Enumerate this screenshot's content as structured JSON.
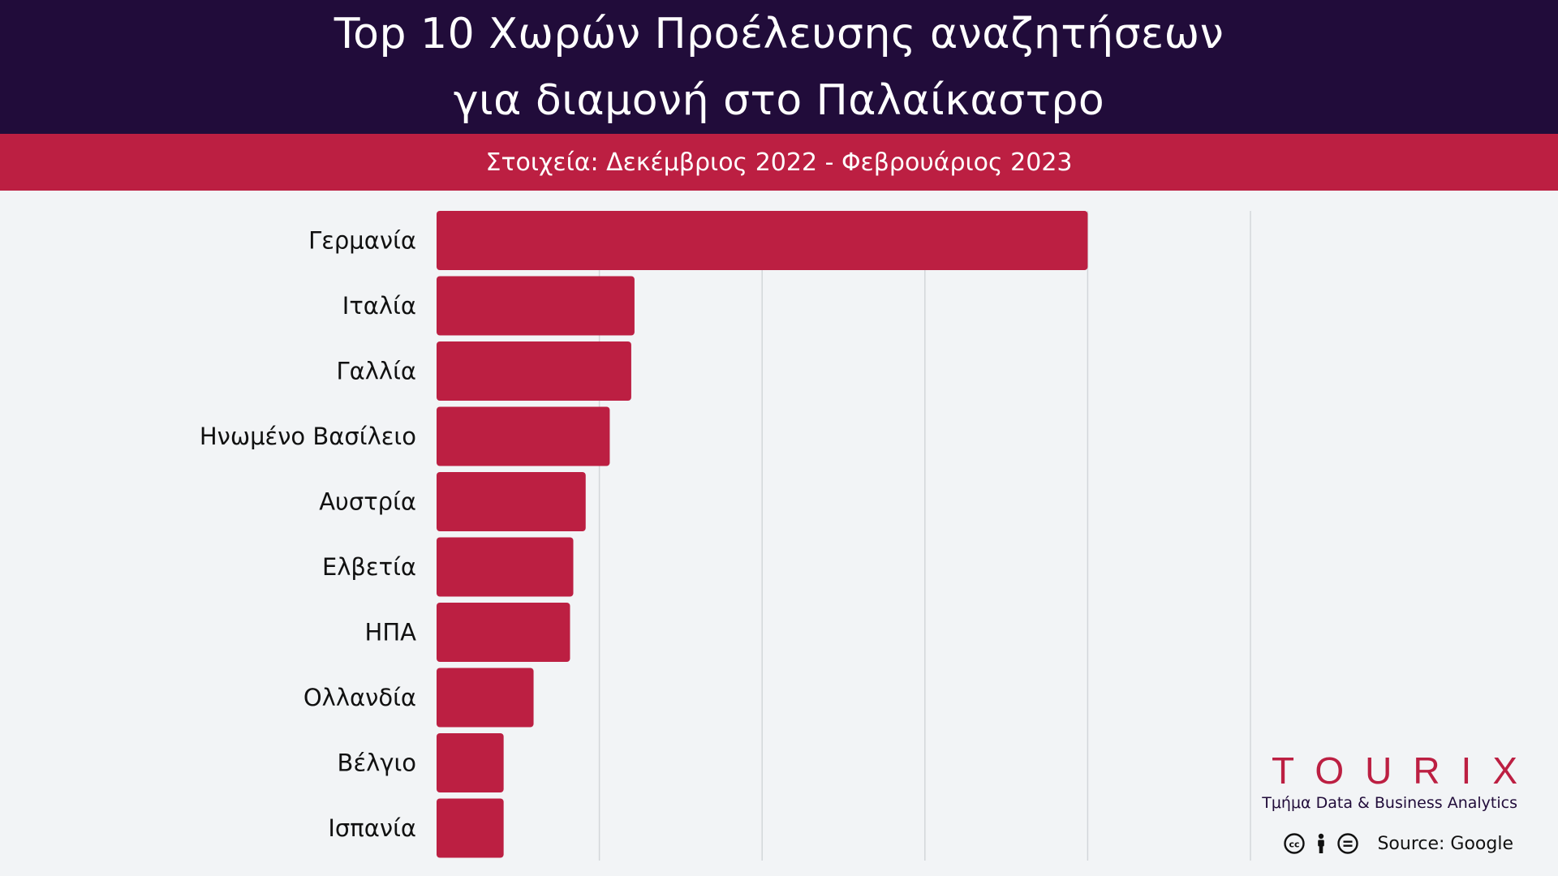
{
  "header": {
    "title_line1": "Top 10 Χωρών Προέλευσης αναζητήσεων",
    "title_line2": "για διαμονή στο Παλαίκαστρο",
    "subtitle": "Στοιχεία: Δεκέμβριος 2022 - Φεβρουάριος 2023"
  },
  "brand": {
    "logo": "TOURIX",
    "department": "Τμήμα Data & Business Analytics",
    "source": "Source: Google",
    "license_icons": [
      "cc-icon",
      "attribution-icon",
      "no-derivatives-icon"
    ]
  },
  "colors": {
    "header_bg": "#210c3a",
    "accent": "#bc1f42",
    "background": "#f2f4f6",
    "gridline": "#d3d6da"
  },
  "chart_data": {
    "type": "bar",
    "orientation": "horizontal",
    "categories": [
      "Γερμανία",
      "Ιταλία",
      "Γαλλία",
      "Ηνωμένο Βασίλειο",
      "Αυστρία",
      "Ελβετία",
      "ΗΠΑ",
      "Ολλανδία",
      "Βέλγιο",
      "Ισπανία"
    ],
    "values": [
      100,
      30.4,
      29.9,
      26.6,
      22.9,
      21.0,
      20.5,
      14.9,
      10.3,
      10.3
    ],
    "xlim": [
      0,
      125
    ],
    "grid": true,
    "legend": "none"
  }
}
